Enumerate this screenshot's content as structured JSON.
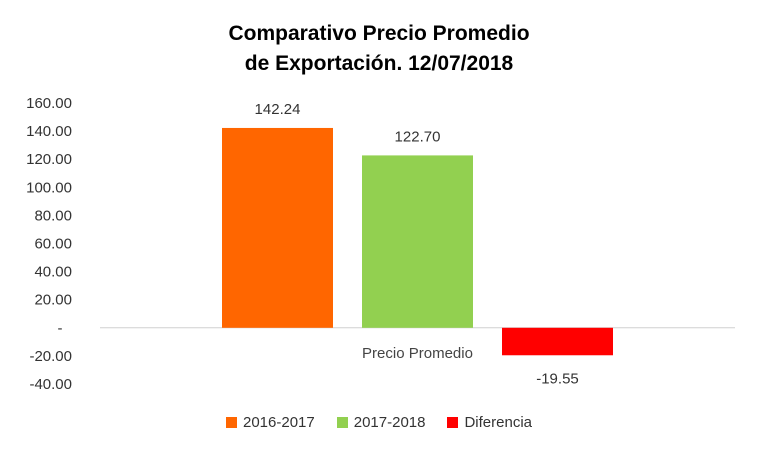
{
  "chart_data": {
    "type": "bar",
    "title": "Comparativo Precio Promedio",
    "subtitle": "de Exportación. 12/07/2018",
    "categories": [
      "Precio Promedio"
    ],
    "series": [
      {
        "name": "2016-2017",
        "values": [
          142.24
        ],
        "label": "142.24",
        "color": "#FF6600"
      },
      {
        "name": "2017-2018",
        "values": [
          122.7
        ],
        "label": "122.70",
        "color": "#92D050"
      },
      {
        "name": "Diferencia",
        "values": [
          -19.55
        ],
        "label": "-19.55",
        "color": "#FF0000"
      }
    ],
    "ylim": [
      -40,
      160
    ],
    "yticks": [
      {
        "value": 160,
        "label": "160.00"
      },
      {
        "value": 140,
        "label": "140.00"
      },
      {
        "value": 120,
        "label": "120.00"
      },
      {
        "value": 100,
        "label": "100.00"
      },
      {
        "value": 80,
        "label": "80.00"
      },
      {
        "value": 60,
        "label": "60.00"
      },
      {
        "value": 40,
        "label": "40.00"
      },
      {
        "value": 20,
        "label": "20.00"
      },
      {
        "value": 0,
        "label": "-"
      },
      {
        "value": -20,
        "label": "-20.00"
      },
      {
        "value": -40,
        "label": "-40.00"
      }
    ],
    "grid": false,
    "legend_position": "bottom"
  }
}
